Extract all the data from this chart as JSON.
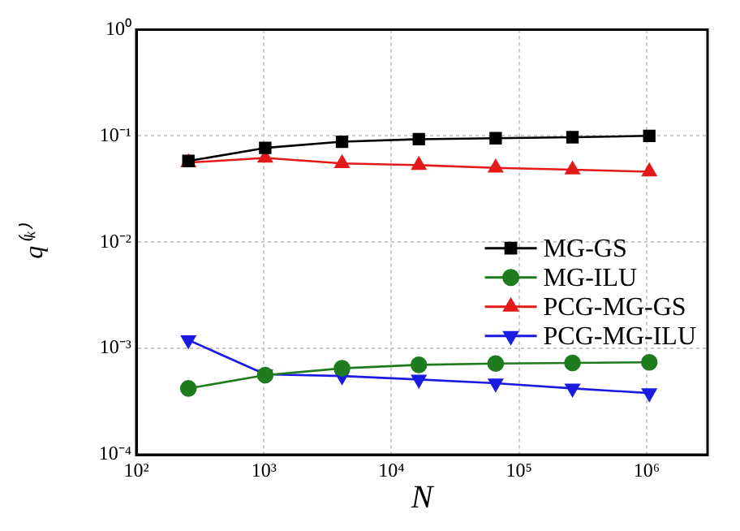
{
  "chart_data": {
    "type": "line",
    "xlabel": "N",
    "ylabel": "q⁽ᵏ⁾",
    "log": "xy",
    "grid": true,
    "legend": "right",
    "line_style": "solid",
    "xlim": [
      100,
      3000000
    ],
    "xticks": [
      {
        "value": 100,
        "label": "10²"
      },
      {
        "value": 1000,
        "label": "10³"
      },
      {
        "value": 10000,
        "label": "10⁴"
      },
      {
        "value": 100000,
        "label": "10⁵"
      },
      {
        "value": 1000000,
        "label": "10⁶"
      }
    ],
    "ylim": [
      0.0001,
      1
    ],
    "yticks": [
      {
        "value": 0.0001,
        "label": "10⁻⁴"
      },
      {
        "value": 0.001,
        "label": "10⁻³"
      },
      {
        "value": 0.01,
        "label": "10⁻²"
      },
      {
        "value": 0.1,
        "label": "10⁻¹"
      },
      {
        "value": 1,
        "label": "10⁰"
      }
    ],
    "x": [
      256,
      1024,
      4096,
      16384,
      65536,
      262144,
      1048576
    ],
    "series": [
      {
        "name": "MG-GS",
        "color": "#000000",
        "marker": "square",
        "values": [
          0.058,
          0.077,
          0.088,
          0.093,
          0.095,
          0.097,
          0.1
        ]
      },
      {
        "name": "MG-ILU",
        "color": "#1e7b1e",
        "marker": "circle",
        "values": [
          0.00042,
          0.00056,
          0.00065,
          0.0007,
          0.00072,
          0.00073,
          0.00074
        ]
      },
      {
        "name": "PCG-MG-GS",
        "color": "#e41a1a",
        "marker": "triangle",
        "values": [
          0.056,
          0.062,
          0.055,
          0.053,
          0.05,
          0.048,
          0.046
        ]
      },
      {
        "name": "PCG-MG-ILU",
        "color": "#1a1ae0",
        "marker": "triangle-down",
        "values": [
          0.0012,
          0.00057,
          0.00055,
          0.00051,
          0.00047,
          0.00042,
          0.00038
        ]
      }
    ]
  }
}
